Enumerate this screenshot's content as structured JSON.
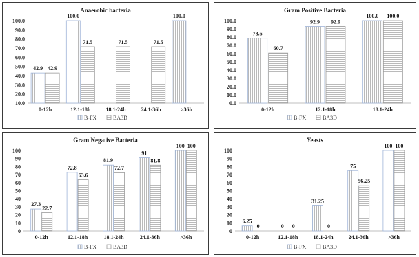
{
  "chart_data": [
    {
      "type": "bar",
      "title": "Anaerobic bacteria",
      "categories": [
        "0-12h",
        "12.1-18h",
        "18.1-24h",
        "24.1-36h",
        ">36h"
      ],
      "series": [
        {
          "name": "B-FX",
          "values": [
            42.9,
            100.0,
            null,
            null,
            100.0
          ],
          "labels": [
            "42.9",
            "100.0",
            "",
            "",
            "100.0"
          ]
        },
        {
          "name": "BA3D",
          "values": [
            42.9,
            71.5,
            71.5,
            71.5,
            null
          ],
          "labels": [
            "42.9",
            "71.5",
            "71.5",
            "71.5",
            ""
          ]
        }
      ],
      "yticks": [
        "10.0",
        "20.0",
        "30.0",
        "40.0",
        "50.0",
        "60.0",
        "70.0",
        "80.0",
        "90.0",
        "100.0"
      ],
      "ylim": [
        10,
        100
      ]
    },
    {
      "type": "bar",
      "title": "Gram Positive Bacteria",
      "categories": [
        "0-12h",
        "12.1-18h",
        "18.1-24h"
      ],
      "series": [
        {
          "name": "B-FX",
          "values": [
            78.6,
            92.9,
            100.0
          ],
          "labels": [
            "78.6",
            "92.9",
            "100.0"
          ]
        },
        {
          "name": "BA3D",
          "values": [
            60.7,
            92.9,
            100.0
          ],
          "labels": [
            "60.7",
            "92.9",
            "100.0"
          ]
        }
      ],
      "yticks": [
        "0.0",
        "10.0",
        "20.0",
        "30.0",
        "40.0",
        "50.0",
        "60.0",
        "70.0",
        "80.0",
        "90.0",
        "100.0"
      ],
      "ylim": [
        0,
        100
      ]
    },
    {
      "type": "bar",
      "title": "Gram Negative Bacteria",
      "categories": [
        "0-12h",
        "12.1-18h",
        "18.1-24h",
        "24.1-36h",
        ">36h"
      ],
      "series": [
        {
          "name": "B-FX",
          "values": [
            27.3,
            72.8,
            81.9,
            91,
            100
          ],
          "labels": [
            "27.3",
            "72.8",
            "81.9",
            "91",
            "100"
          ]
        },
        {
          "name": "BA3D",
          "values": [
            22.7,
            63.6,
            72.7,
            81.8,
            100
          ],
          "labels": [
            "22.7",
            "63.6",
            "72.7",
            "81.8",
            "100"
          ]
        }
      ],
      "yticks": [
        "0",
        "10",
        "20",
        "30",
        "40",
        "50",
        "60",
        "70",
        "80",
        "90",
        "100"
      ],
      "ylim": [
        0,
        100
      ]
    },
    {
      "type": "bar",
      "title": "Yeasts",
      "categories": [
        "0-12h",
        "12.1-18h",
        "18.1-24h",
        "24.1-36h",
        ">36h"
      ],
      "series": [
        {
          "name": "B-FX",
          "values": [
            6.25,
            0,
            31.25,
            75,
            100
          ],
          "labels": [
            "6.25",
            "0",
            "31.25",
            "75",
            "100"
          ]
        },
        {
          "name": "BA3D",
          "values": [
            0,
            0,
            0,
            56.25,
            100
          ],
          "labels": [
            "0",
            "0",
            "0",
            "56.25",
            "100"
          ]
        }
      ],
      "yticks": [
        "0",
        "10",
        "20",
        "30",
        "40",
        "50",
        "60",
        "70",
        "80",
        "90",
        "100"
      ],
      "ylim": [
        0,
        100
      ]
    }
  ],
  "colors": {
    "bfx_border": "#9fb4d8",
    "bfx_fill": "#ffffff",
    "ba3d_border": "#9a9a9a",
    "stripe": "#a8a8a8"
  }
}
